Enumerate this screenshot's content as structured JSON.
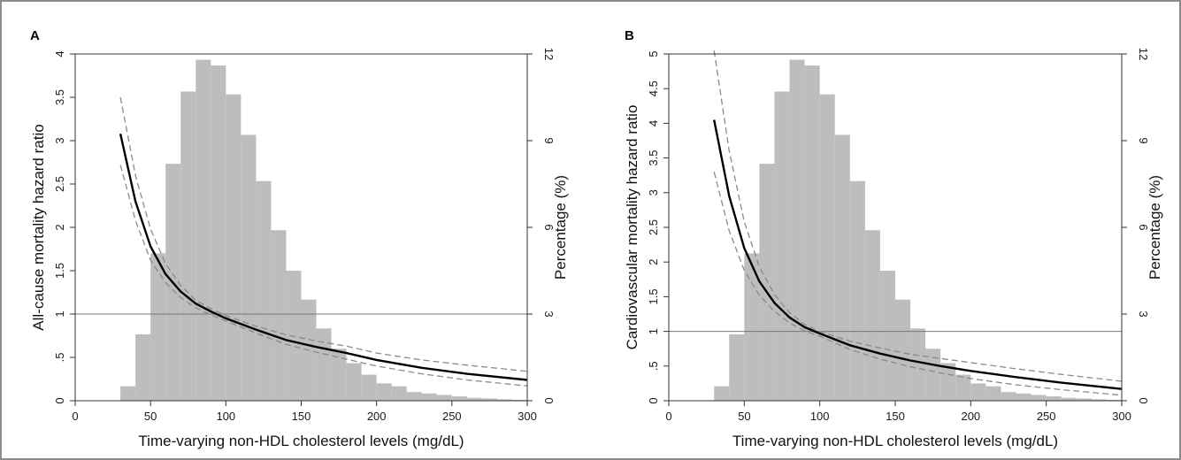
{
  "chart_data": [
    {
      "type": "line+histogram",
      "panel_label": "A",
      "xlabel": "Time-varying non-HDL cholesterol levels (mg/dL)",
      "ylabel": "All-cause mortality hazard ratio",
      "y2label": "Percentage (%)",
      "xlim": [
        0,
        300
      ],
      "xticks": [
        "0",
        "50",
        "100",
        "150",
        "200",
        "250",
        "300"
      ],
      "ylim": [
        0,
        4
      ],
      "yticks": [
        "0",
        ".5",
        "1",
        "1.5",
        "2",
        "2.5",
        "3",
        "3.5",
        "4"
      ],
      "y2lim": [
        0,
        12
      ],
      "y2ticks": [
        "0",
        "3",
        "6",
        "9",
        "12"
      ],
      "reference_line_hr": 1,
      "histogram": {
        "bin_width": 10,
        "bin_starts": [
          30,
          40,
          50,
          60,
          70,
          80,
          90,
          100,
          110,
          120,
          130,
          140,
          150,
          160,
          170,
          180,
          190,
          200,
          210,
          220,
          230,
          240,
          250,
          260,
          270,
          280,
          290
        ],
        "percent": [
          0.5,
          2.3,
          5.1,
          8.2,
          10.7,
          11.8,
          11.6,
          10.6,
          9.2,
          7.6,
          5.9,
          4.5,
          3.5,
          2.5,
          1.8,
          1.3,
          0.9,
          0.6,
          0.5,
          0.3,
          0.25,
          0.2,
          0.15,
          0.1,
          0.08,
          0.05,
          0.03
        ]
      },
      "hazard_ratio": {
        "x": [
          30,
          40,
          50,
          60,
          70,
          80,
          90,
          100,
          120,
          140,
          160,
          180,
          200,
          230,
          260,
          300
        ],
        "estimate": [
          3.08,
          2.3,
          1.78,
          1.46,
          1.26,
          1.12,
          1.03,
          0.95,
          0.82,
          0.7,
          0.62,
          0.55,
          0.47,
          0.38,
          0.31,
          0.24
        ],
        "upper": [
          3.5,
          2.6,
          1.98,
          1.58,
          1.33,
          1.16,
          1.06,
          0.98,
          0.86,
          0.76,
          0.69,
          0.63,
          0.55,
          0.47,
          0.41,
          0.34
        ],
        "lower": [
          2.72,
          2.08,
          1.62,
          1.36,
          1.19,
          1.07,
          0.99,
          0.92,
          0.78,
          0.65,
          0.56,
          0.48,
          0.4,
          0.31,
          0.24,
          0.17
        ]
      }
    },
    {
      "type": "line+histogram",
      "panel_label": "B",
      "xlabel": "Time-varying non-HDL cholesterol levels (mg/dL)",
      "ylabel": "Cardiovascular mortality hazard ratio",
      "y2label": "Percentage (%)",
      "xlim": [
        0,
        300
      ],
      "xticks": [
        "0",
        "50",
        "100",
        "150",
        "200",
        "250",
        "300"
      ],
      "ylim": [
        0,
        5
      ],
      "yticks": [
        "0",
        ".5",
        "1",
        "1.5",
        "2",
        "2.5",
        "3",
        "3.5",
        "4",
        "4.5",
        "5"
      ],
      "y2lim": [
        0,
        12
      ],
      "y2ticks": [
        "0",
        "3",
        "6",
        "9",
        "12"
      ],
      "reference_line_hr": 1,
      "histogram": {
        "bin_width": 10,
        "bin_starts": [
          30,
          40,
          50,
          60,
          70,
          80,
          90,
          100,
          110,
          120,
          130,
          140,
          150,
          160,
          170,
          180,
          190,
          200,
          210,
          220,
          230,
          240,
          250,
          260,
          270,
          280,
          290
        ],
        "percent": [
          0.5,
          2.3,
          5.1,
          8.2,
          10.7,
          11.8,
          11.6,
          10.6,
          9.2,
          7.6,
          5.9,
          4.5,
          3.5,
          2.5,
          1.8,
          1.3,
          0.9,
          0.6,
          0.5,
          0.3,
          0.25,
          0.2,
          0.15,
          0.1,
          0.08,
          0.05,
          0.03
        ]
      },
      "hazard_ratio": {
        "x": [
          30,
          40,
          50,
          60,
          70,
          80,
          90,
          100,
          120,
          140,
          160,
          180,
          200,
          230,
          260,
          300
        ],
        "estimate": [
          4.05,
          2.95,
          2.2,
          1.72,
          1.41,
          1.2,
          1.06,
          0.97,
          0.8,
          0.68,
          0.58,
          0.5,
          0.43,
          0.34,
          0.26,
          0.17
        ],
        "upper": [
          5.05,
          3.6,
          2.58,
          1.93,
          1.53,
          1.27,
          1.1,
          1.0,
          0.86,
          0.76,
          0.67,
          0.61,
          0.55,
          0.46,
          0.38,
          0.28
        ],
        "lower": [
          3.3,
          2.45,
          1.88,
          1.52,
          1.29,
          1.12,
          1.01,
          0.93,
          0.74,
          0.6,
          0.49,
          0.4,
          0.32,
          0.23,
          0.16,
          0.08
        ]
      }
    }
  ],
  "colors": {
    "bars": "#bdbdbd",
    "estimate_line": "#000000",
    "ci_line": "#8a8a8a",
    "reference_line": "#777777",
    "axis": "#333333"
  }
}
